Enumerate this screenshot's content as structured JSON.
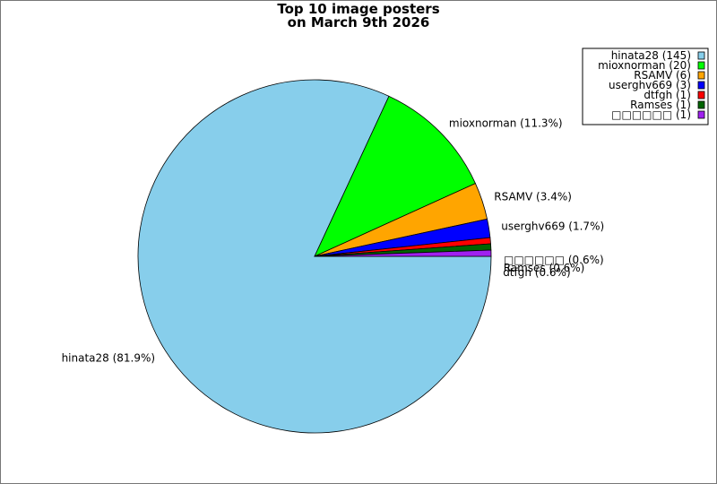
{
  "chart_data": {
    "type": "pie",
    "title_lines": [
      "Top 10 image posters",
      "on March 9th 2026"
    ],
    "slices": [
      {
        "name": "hinata28",
        "count": 145,
        "percent": 81.9,
        "color": "#87ceeb"
      },
      {
        "name": "mioxnorman",
        "count": 20,
        "percent": 11.3,
        "color": "#00ff00"
      },
      {
        "name": "RSAMV",
        "count": 6,
        "percent": 3.4,
        "color": "#ffa500"
      },
      {
        "name": "userghv669",
        "count": 3,
        "percent": 1.7,
        "color": "#0000ff"
      },
      {
        "name": "dtfgh",
        "count": 1,
        "percent": 0.6,
        "color": "#ff0000"
      },
      {
        "name": "Ramses",
        "count": 1,
        "percent": 0.6,
        "color": "#006400"
      },
      {
        "name": "□□□□□□",
        "count": 1,
        "percent": 0.6,
        "color": "#a020f0"
      }
    ],
    "legend_position": "top-right"
  }
}
